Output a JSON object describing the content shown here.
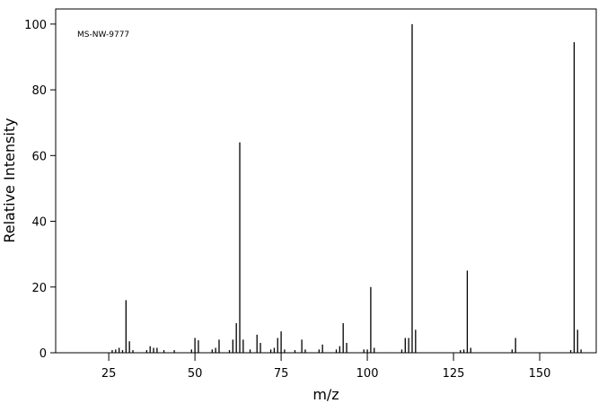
{
  "chart_data": {
    "type": "bar",
    "annotation": "MS-NW-9777",
    "x_label": "m/z",
    "y_label": "Relative Intensity",
    "x": [
      26,
      27,
      28,
      29,
      30,
      31,
      32,
      36,
      37,
      38,
      39,
      41,
      44,
      49,
      50,
      51,
      55,
      56,
      57,
      60,
      61,
      62,
      63,
      64,
      66,
      68,
      69,
      72,
      73,
      74,
      75,
      76,
      79,
      81,
      82,
      86,
      87,
      91,
      92,
      93,
      94,
      99,
      100,
      101,
      102,
      110,
      111,
      112,
      113,
      114,
      127,
      128,
      129,
      130,
      142,
      143,
      159,
      160,
      161,
      162
    ],
    "values": [
      0.8,
      1,
      1.5,
      0.8,
      16,
      3.5,
      0.8,
      0.8,
      2,
      1.5,
      1.5,
      0.8,
      0.8,
      1,
      4.5,
      3.8,
      1,
      1.5,
      4,
      0.8,
      4,
      9,
      64,
      4,
      1,
      5.5,
      3,
      1,
      1.5,
      4.5,
      6.5,
      1,
      0.8,
      4,
      1,
      1,
      2.5,
      1,
      2,
      9,
      3,
      1,
      1,
      20,
      1.5,
      1,
      4.5,
      4.5,
      100,
      7,
      0.8,
      1,
      25,
      1.5,
      1,
      4.5,
      0.8,
      94.5,
      7,
      1
    ],
    "color": "#000000",
    "xlim": [
      9.6,
      166.4
    ],
    "ylim": [
      0,
      104.6
    ],
    "xticks": [
      25,
      50,
      75,
      100,
      125,
      150
    ],
    "yticks": [
      0,
      20,
      40,
      60,
      80,
      100
    ]
  }
}
